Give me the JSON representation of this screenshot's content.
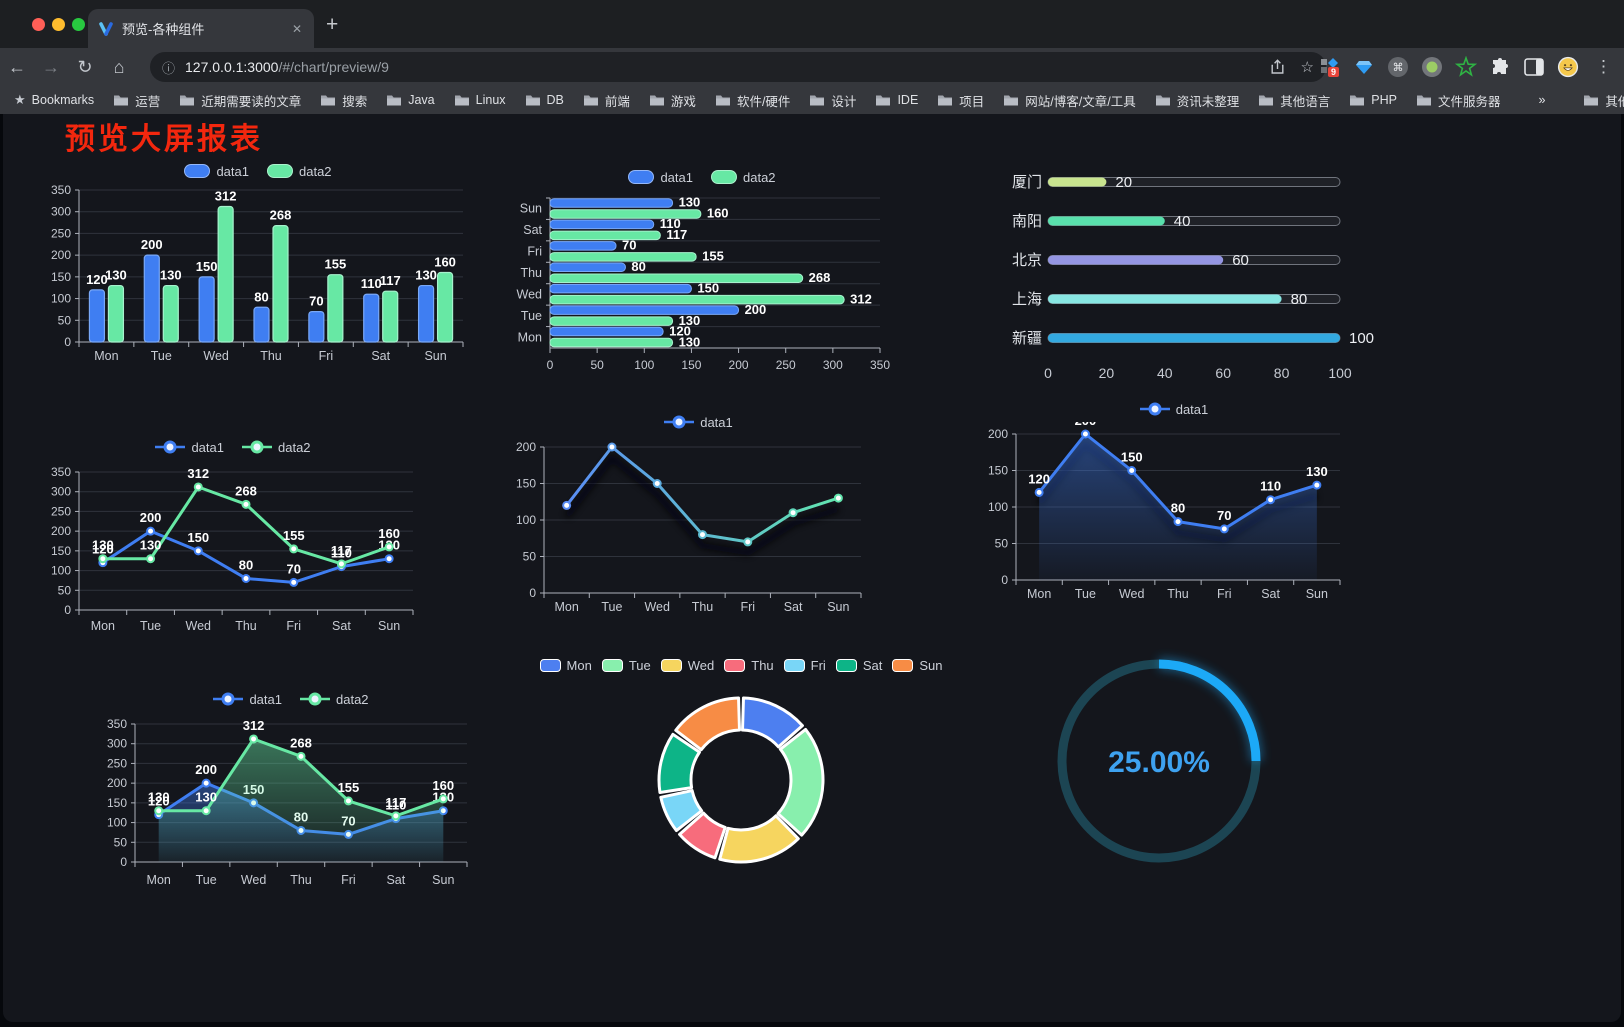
{
  "browser": {
    "tab_title": "预览-各种组件",
    "url_host": "127.0.0.1:3000",
    "url_path": "/#/chart/preview/9",
    "extension_badge": "9",
    "bookmarks_label": "Bookmarks",
    "bookmark_folders": [
      "运营",
      "近期需要读的文章",
      "搜索",
      "Java",
      "Linux",
      "DB",
      "前端",
      "游戏",
      "软件/硬件",
      "设计",
      "IDE",
      "项目",
      "网站/博客/文章/工具",
      "资讯未整理",
      "其他语言",
      "PHP",
      "文件服务器"
    ],
    "bookmarks_overflow": "»",
    "other_bookmarks": "其他书签",
    "icons": {
      "close": "✕",
      "new_tab": "+",
      "back": "←",
      "forward": "→",
      "reload": "↻",
      "home": "⌂",
      "info": "ⓘ",
      "star": "☆",
      "menu": "⋮",
      "bookmarks_star": "★",
      "command": "⌘"
    }
  },
  "page": {
    "title": "预览大屏报表",
    "title_color": "#f3270e",
    "panel_background": "#14161c"
  },
  "chart_data": [
    {
      "id": "bar-vertical",
      "type": "bar",
      "legend_position": "top",
      "grid": true,
      "value_labels": true,
      "categories": [
        "Mon",
        "Tue",
        "Wed",
        "Thu",
        "Fri",
        "Sat",
        "Sun"
      ],
      "series": [
        {
          "name": "data1",
          "color": "#3f7ef2",
          "border": "#79a8f7",
          "values": [
            120,
            200,
            150,
            80,
            70,
            110,
            130
          ]
        },
        {
          "name": "data2",
          "color": "#67e8a4",
          "border": "#a6f2cd",
          "values": [
            130,
            130,
            312,
            268,
            155,
            117,
            160
          ]
        }
      ],
      "ylim": [
        0,
        350
      ],
      "ytick_step": 50
    },
    {
      "id": "bar-horizontal",
      "type": "bar",
      "orientation": "horizontal",
      "legend_position": "top",
      "display_top_to_bottom": [
        "Sun",
        "Sat",
        "Fri",
        "Thu",
        "Wed",
        "Tue",
        "Mon"
      ],
      "value_labels": true,
      "categories": [
        "Mon",
        "Tue",
        "Wed",
        "Thu",
        "Fri",
        "Sat",
        "Sun"
      ],
      "series": [
        {
          "name": "data1",
          "color": "#3f7ef2",
          "border": "#79a8f7",
          "values": [
            120,
            200,
            150,
            80,
            70,
            110,
            130
          ]
        },
        {
          "name": "data2",
          "color": "#67e8a4",
          "border": "#a6f2cd",
          "values": [
            130,
            130,
            312,
            268,
            155,
            117,
            160
          ]
        }
      ],
      "xlim": [
        0,
        350
      ],
      "xtick_step": 50
    },
    {
      "id": "progress-bars",
      "type": "bar",
      "variant": "progress",
      "items": [
        {
          "label": "厦门",
          "value": 20,
          "color": "#c9e48f"
        },
        {
          "label": "南阳",
          "value": 40,
          "color": "#59e0ac"
        },
        {
          "label": "北京",
          "value": 60,
          "color": "#9495e2"
        },
        {
          "label": "上海",
          "value": 80,
          "color": "#87e6e2"
        },
        {
          "label": "新疆",
          "value": 100,
          "color": "#33a9e0"
        }
      ],
      "xlim": [
        0,
        100
      ],
      "xticks": [
        0,
        20,
        40,
        60,
        80,
        100
      ]
    },
    {
      "id": "line-two-series",
      "type": "line",
      "legend_position": "top",
      "value_labels": true,
      "categories": [
        "Mon",
        "Tue",
        "Wed",
        "Thu",
        "Fri",
        "Sat",
        "Sun"
      ],
      "series": [
        {
          "name": "data1",
          "color": "#3f7ef2",
          "values": [
            120,
            200,
            150,
            80,
            70,
            110,
            130
          ]
        },
        {
          "name": "data2",
          "color": "#67e8a4",
          "values": [
            130,
            130,
            312,
            268,
            155,
            117,
            160
          ]
        }
      ],
      "ylim": [
        0,
        350
      ],
      "ytick_step": 50
    },
    {
      "id": "line-gradient",
      "type": "line",
      "legend_position": "top",
      "value_labels": false,
      "shadow": true,
      "categories": [
        "Mon",
        "Tue",
        "Wed",
        "Thu",
        "Fri",
        "Sat",
        "Sun"
      ],
      "series": [
        {
          "name": "data1",
          "color": "#3f7ef2",
          "gradient": [
            "#5a8df5",
            "#62e6ae"
          ],
          "values": [
            120,
            200,
            150,
            80,
            70,
            110,
            130
          ]
        }
      ],
      "ylim": [
        0,
        200
      ],
      "ytick_step": 50
    },
    {
      "id": "line-area-blue",
      "type": "line",
      "legend_position": "top",
      "value_labels": true,
      "shadow": true,
      "categories": [
        "Mon",
        "Tue",
        "Wed",
        "Thu",
        "Fri",
        "Sat",
        "Sun"
      ],
      "series": [
        {
          "name": "data1",
          "color": "#3f7ef2",
          "area": true,
          "values": [
            120,
            200,
            150,
            80,
            70,
            110,
            130
          ]
        }
      ],
      "ylim": [
        0,
        200
      ],
      "ytick_step": 50
    },
    {
      "id": "line-two-series-area",
      "type": "line",
      "legend_position": "top",
      "value_labels": true,
      "categories": [
        "Mon",
        "Tue",
        "Wed",
        "Thu",
        "Fri",
        "Sat",
        "Sun"
      ],
      "series": [
        {
          "name": "data1",
          "color": "#3f7ef2",
          "area": true,
          "values": [
            120,
            200,
            150,
            80,
            70,
            110,
            130
          ]
        },
        {
          "name": "data2",
          "color": "#67e8a4",
          "area": true,
          "values": [
            130,
            130,
            312,
            268,
            155,
            117,
            160
          ]
        }
      ],
      "ylim": [
        0,
        350
      ],
      "ytick_step": 50
    },
    {
      "id": "donut",
      "type": "pie",
      "donut": true,
      "legend_position": "top",
      "categories": [
        "Mon",
        "Tue",
        "Wed",
        "Thu",
        "Fri",
        "Sat",
        "Sun"
      ],
      "values": [
        120,
        200,
        150,
        80,
        70,
        110,
        130
      ],
      "colors": [
        "#4d7ff0",
        "#88efad",
        "#f6d55f",
        "#f76c7c",
        "#79d6f7",
        "#0db487",
        "#f78c45"
      ]
    },
    {
      "id": "gauge",
      "type": "gauge",
      "value": 25,
      "display": "25.00%",
      "color": "#1ca9f7",
      "track_color": "#1c4553",
      "text_color": "#3ea2f0"
    }
  ]
}
